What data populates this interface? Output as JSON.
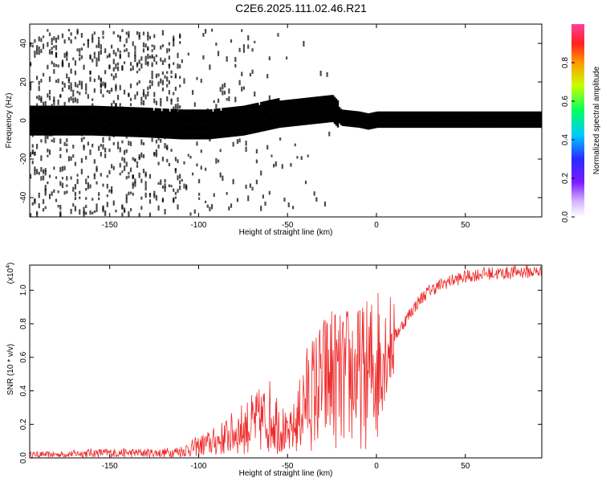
{
  "title": "C2E6.2025.111.02.46.R21",
  "chart_data": [
    {
      "type": "heatmap",
      "xlabel": "Height of straight line (km)",
      "ylabel": "Frequency (Hz)",
      "xlim": [
        -195,
        93
      ],
      "ylim": [
        -50,
        50
      ],
      "x_ticks": [
        -150,
        -100,
        -50,
        0,
        50
      ],
      "x_tick_labels": [
        "-150",
        "-100",
        "-50",
        "0",
        "50"
      ],
      "y_ticks": [
        -40,
        -20,
        0,
        20,
        40
      ],
      "y_tick_labels": [
        "-40",
        "-20",
        "0",
        "20",
        "40"
      ],
      "ridge": {
        "x": [
          -195,
          -160,
          -130,
          -110,
          -95,
          -85,
          -75,
          -65,
          -55,
          -45,
          -35,
          -25,
          -20,
          -10,
          -5,
          0,
          20,
          50,
          93
        ],
        "y": [
          0,
          0,
          -1,
          -2,
          -2,
          -1,
          0,
          2,
          4,
          5,
          6,
          7,
          2,
          1,
          0,
          1,
          1,
          1,
          1
        ]
      },
      "colorbar": {
        "label": "Normalized spectral amplitude",
        "range": [
          0,
          1
        ],
        "ticks": [
          0.0,
          0.2,
          0.4,
          0.6,
          0.8
        ],
        "tick_labels": [
          "0.0",
          "0.2",
          "0.4",
          "0.6",
          "0.8"
        ]
      }
    },
    {
      "type": "line",
      "title": "",
      "xlabel": "Height of straight line (km)",
      "ylabel": "SNR (10 * v/v)",
      "exponent_label": "(x10",
      "exponent_power": "4",
      "exponent_close": ")",
      "xlim": [
        -195,
        93
      ],
      "ylim": [
        0,
        1.15
      ],
      "x_ticks": [
        -150,
        -100,
        -50,
        0,
        50
      ],
      "x_tick_labels": [
        "-150",
        "-100",
        "-50",
        "0",
        "50"
      ],
      "y_ticks": [
        0.0,
        0.2,
        0.4,
        0.6,
        0.8,
        1.0
      ],
      "y_tick_labels": [
        "0.0",
        "0.2",
        "0.4",
        "0.6",
        "0.8",
        "1.0"
      ],
      "series": [
        {
          "name": "SNR",
          "color": "#ee2a2a",
          "x": [
            -195,
            -180,
            -160,
            -140,
            -120,
            -110,
            -100,
            -90,
            -80,
            -70,
            -60,
            -55,
            -50,
            -45,
            -40,
            -35,
            -30,
            -25,
            -20,
            -15,
            -10,
            -5,
            0,
            5,
            10,
            15,
            20,
            25,
            30,
            40,
            50,
            60,
            70,
            80,
            93
          ],
          "y": [
            0.02,
            0.02,
            0.03,
            0.03,
            0.03,
            0.04,
            0.07,
            0.1,
            0.15,
            0.2,
            0.25,
            0.22,
            0.12,
            0.2,
            0.35,
            0.4,
            0.45,
            0.5,
            0.45,
            0.5,
            0.48,
            0.5,
            0.55,
            0.65,
            0.72,
            0.8,
            0.88,
            0.95,
            1.0,
            1.05,
            1.08,
            1.1,
            1.1,
            1.11,
            1.11
          ]
        }
      ]
    }
  ],
  "colors": {
    "line": "#ee2a2a",
    "axes": "#000000"
  }
}
